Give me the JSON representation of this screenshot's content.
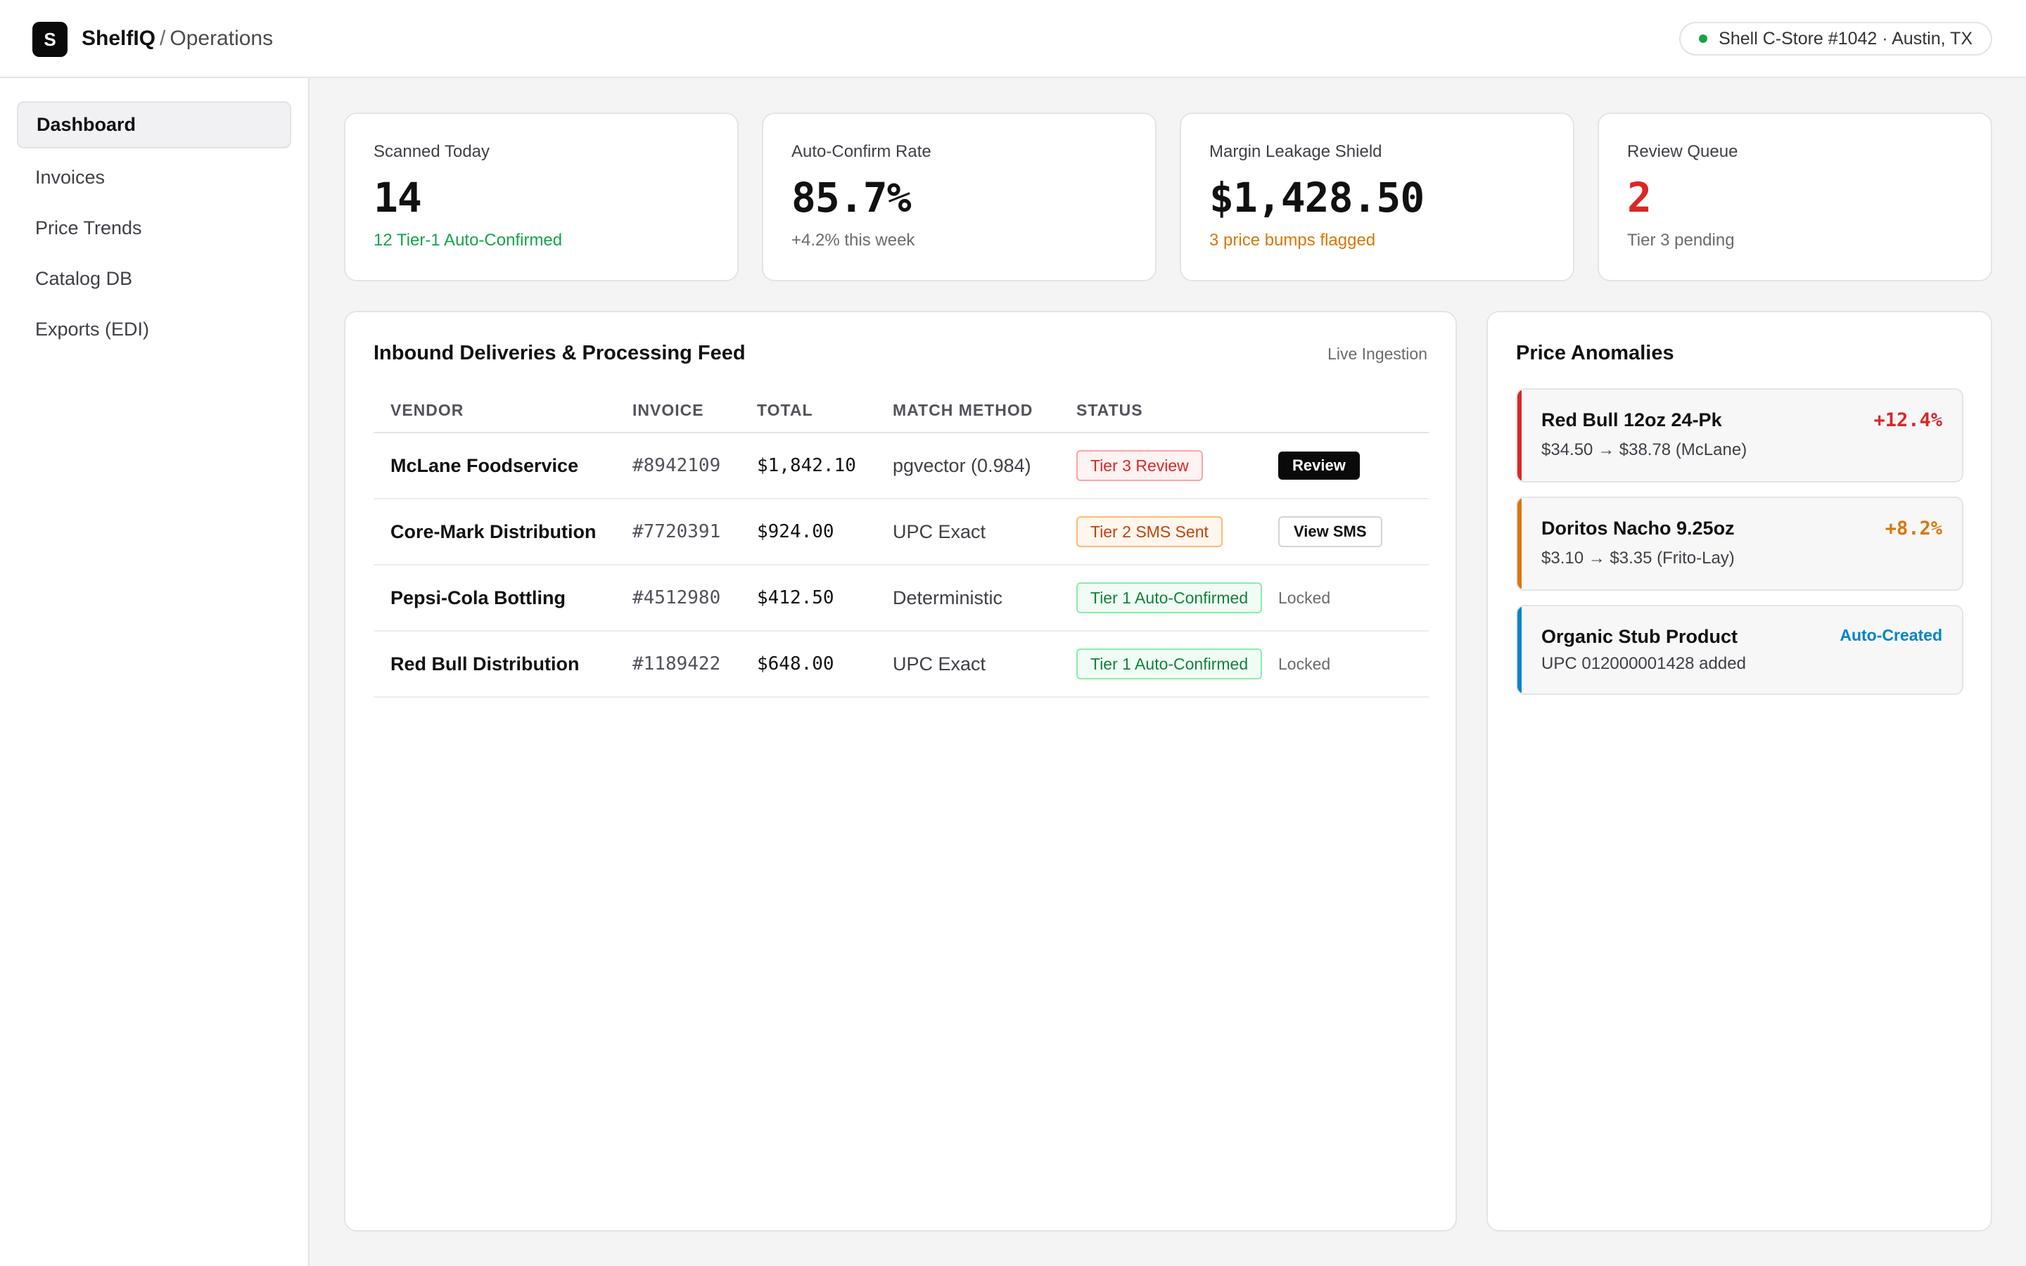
{
  "app": {
    "logo_letter": "S",
    "name": "ShelfIQ",
    "separator": "/",
    "section": "Operations"
  },
  "store": {
    "label": "Shell C-Store #1042 · Austin, TX",
    "status_color": "#16a34a"
  },
  "sidebar": {
    "items": [
      {
        "label": "Dashboard",
        "active": true
      },
      {
        "label": "Invoices"
      },
      {
        "label": "Price Trends"
      },
      {
        "label": "Catalog DB"
      },
      {
        "label": "Exports (EDI)"
      }
    ]
  },
  "stats": [
    {
      "label": "Scanned Today",
      "value": "14",
      "sub": "12 Tier-1 Auto-Confirmed",
      "sub_color": "#16a34a"
    },
    {
      "label": "Auto-Confirm Rate",
      "value": "85.7%",
      "sub": "+4.2% this week",
      "sub_color": "#6b6b6b"
    },
    {
      "label": "Margin Leakage Shield",
      "value": "$1,428.50",
      "sub": "3 price bumps flagged",
      "sub_color": "#d97706"
    },
    {
      "label": "Review Queue",
      "value": "2",
      "sub": "Tier 3 pending",
      "value_color": "#dc2626"
    }
  ],
  "feed": {
    "title": "Inbound Deliveries & Processing Feed",
    "aside": "Live Ingestion",
    "columns": [
      "VENDOR",
      "INVOICE",
      "TOTAL",
      "MATCH METHOD",
      "STATUS"
    ],
    "rows": [
      {
        "vendor": "McLane Foodservice",
        "invoice": "#8942109",
        "total": "$1,842.10",
        "method": "pgvector (0.984)",
        "status": "Tier 3 Review",
        "action": "Review"
      },
      {
        "vendor": "Core-Mark Distribution",
        "invoice": "#7720391",
        "total": "$924.00",
        "method": "UPC Exact",
        "status": "Tier 2 SMS Sent",
        "action": "View SMS"
      },
      {
        "vendor": "Pepsi-Cola Bottling",
        "invoice": "#4512980",
        "total": "$412.50",
        "method": "Deterministic",
        "status": "Tier 1 Auto-Confirmed",
        "action": "Locked"
      },
      {
        "vendor": "Red Bull Distribution",
        "invoice": "#1189422",
        "total": "$648.00",
        "method": "UPC Exact",
        "status": "Tier 1 Auto-Confirmed",
        "action": "Locked"
      }
    ]
  },
  "anomalies": {
    "title": "Price Anomalies",
    "items": [
      {
        "title": "Red Bull 12oz 24-Pk",
        "detail": "$34.50 → $38.78 (McLane)",
        "tag": "+12.4%",
        "color": "#dc2626"
      },
      {
        "title": "Doritos Nacho 9.25oz",
        "detail": "$3.10 → $3.35 (Frito-Lay)",
        "tag": "+8.2%",
        "color": "#d97706"
      },
      {
        "title": "Organic Stub Product",
        "detail": "UPC 012000001428 added",
        "tag": "Auto-Created",
        "color": "#0284c7"
      }
    ]
  }
}
